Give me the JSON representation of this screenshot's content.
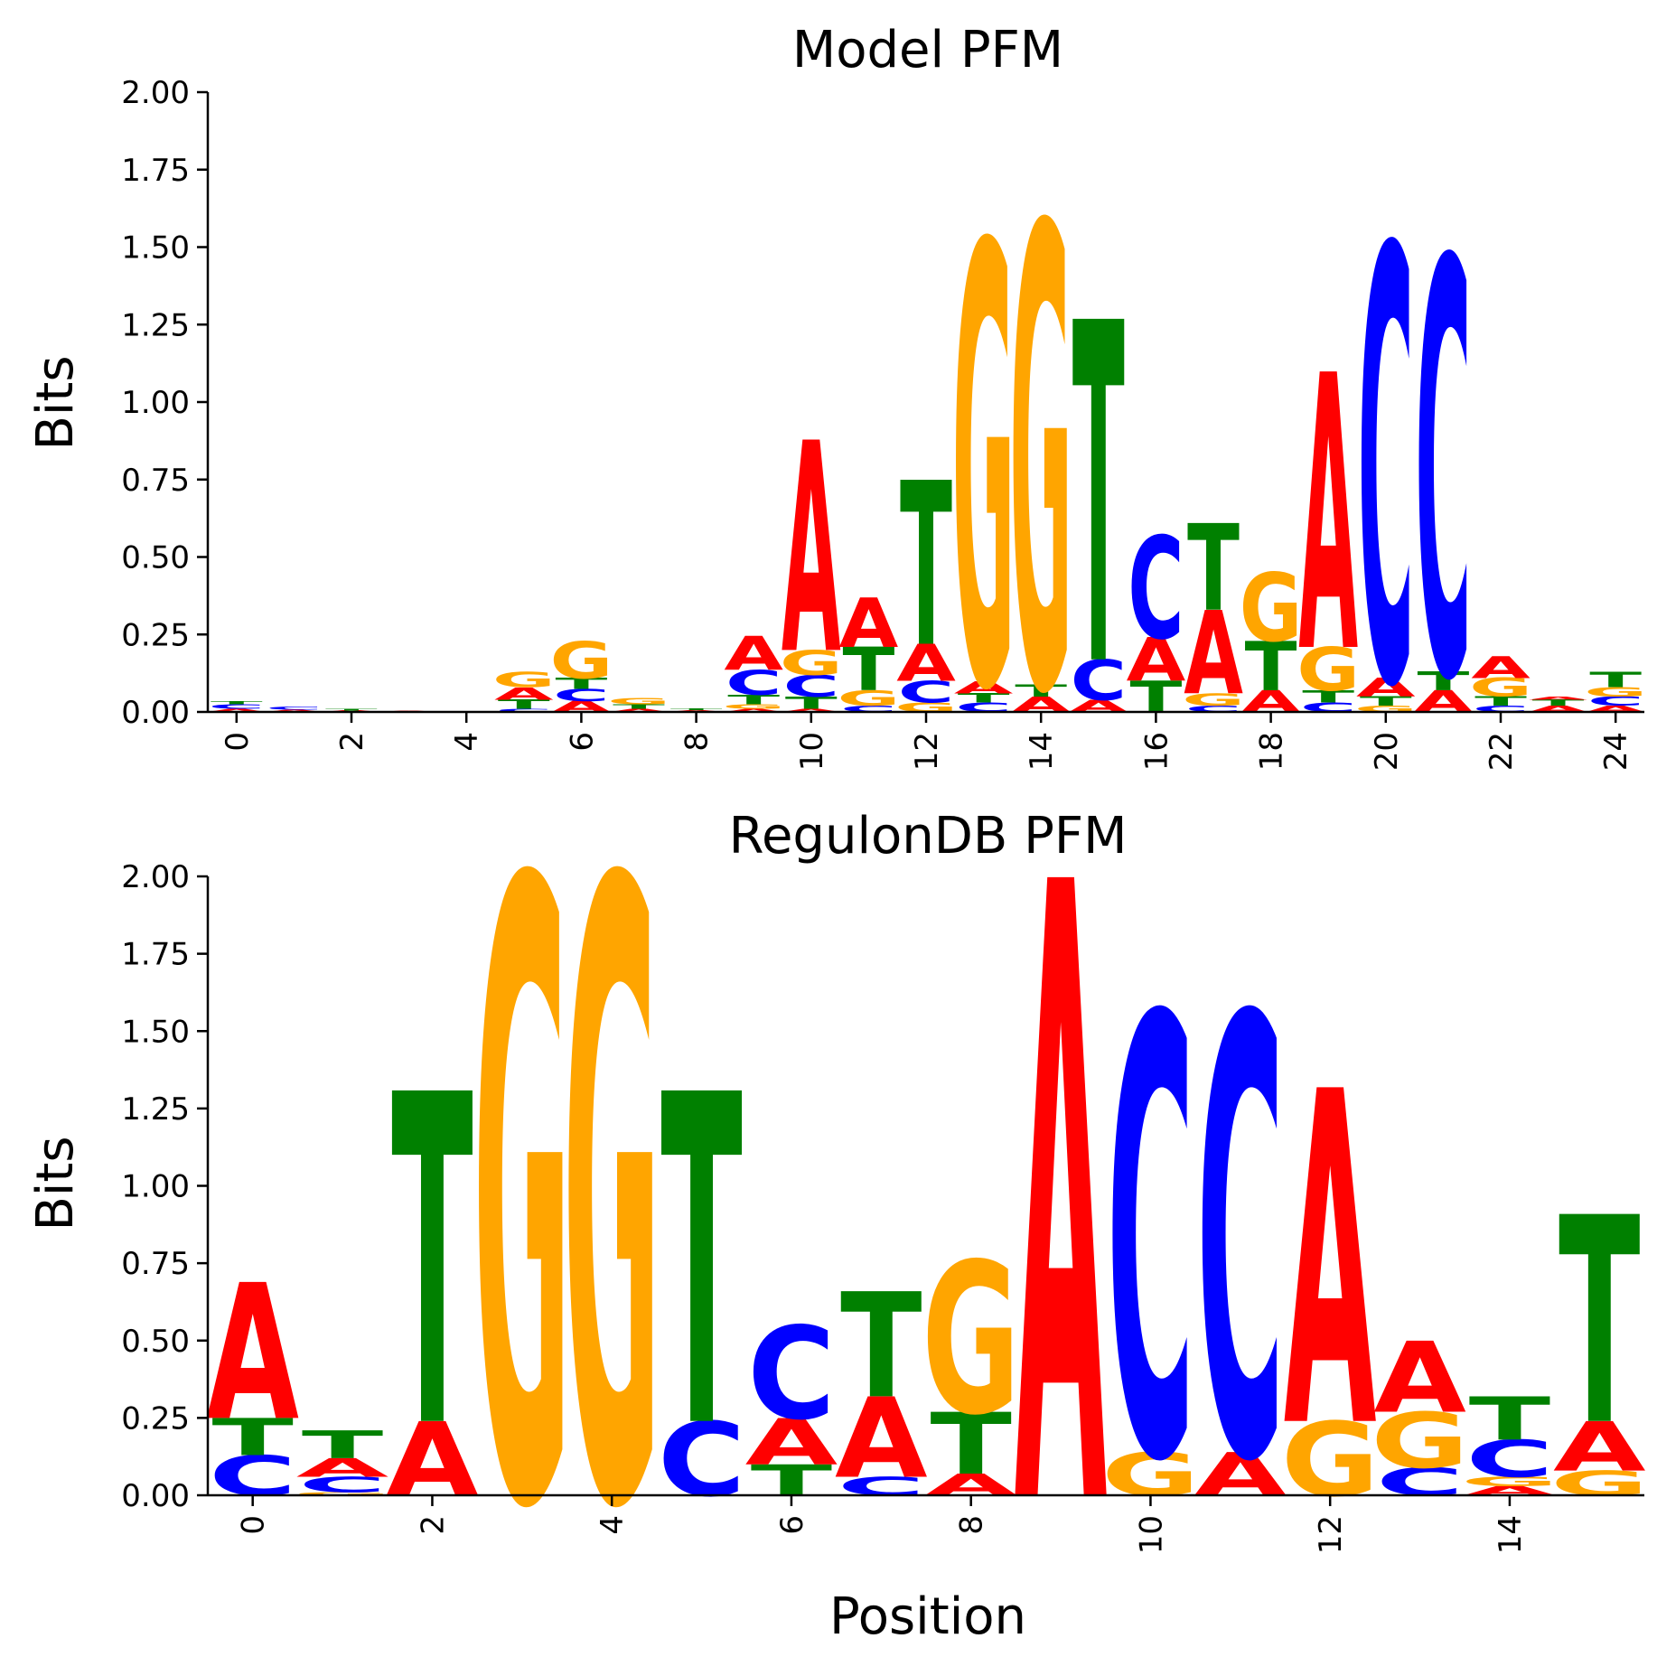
{
  "colors": {
    "A": "#ff0000",
    "C": "#0000ff",
    "G": "#ffa500",
    "T": "#008000"
  },
  "chart_data": [
    {
      "type": "sequence-logo",
      "title": "Model PFM",
      "ylabel": "Bits",
      "xlabel": "",
      "ylim": [
        0,
        2
      ],
      "yticks": [
        "0.00",
        "0.25",
        "0.50",
        "0.75",
        "1.00",
        "1.25",
        "1.50",
        "1.75",
        "2.00"
      ],
      "xticks": [
        "0",
        "2",
        "4",
        "6",
        "8",
        "10",
        "12",
        "14",
        "16",
        "18",
        "20",
        "22",
        "24"
      ],
      "positions": [
        [
          [
            "A",
            0.01
          ],
          [
            "C",
            0.015
          ],
          [
            "T",
            0.01
          ]
        ],
        [
          [
            "A",
            0.008
          ],
          [
            "C",
            0.01
          ]
        ],
        [
          [
            "A",
            0.005
          ],
          [
            "T",
            0.005
          ]
        ],
        [
          [
            "A",
            0.004
          ]
        ],
        [
          [
            "A",
            0.002
          ]
        ],
        [
          [
            "C",
            0.01
          ],
          [
            "T",
            0.03
          ],
          [
            "A",
            0.04
          ],
          [
            "G",
            0.05
          ]
        ],
        [
          [
            "A",
            0.035
          ],
          [
            "C",
            0.04
          ],
          [
            "T",
            0.035
          ],
          [
            "G",
            0.12
          ]
        ],
        [
          [
            "A",
            0.01
          ],
          [
            "T",
            0.015
          ],
          [
            "G",
            0.02
          ]
        ],
        [
          [
            "A",
            0.006
          ],
          [
            "T",
            0.006
          ]
        ],
        [
          [
            "A",
            0.01
          ],
          [
            "G",
            0.015
          ],
          [
            "T",
            0.03
          ],
          [
            "C",
            0.08
          ],
          [
            "A",
            0.11
          ]
        ],
        [
          [
            "A",
            0.01
          ],
          [
            "T",
            0.04
          ],
          [
            "C",
            0.07
          ],
          [
            "G",
            0.08
          ],
          [
            "A",
            0.68
          ]
        ],
        [
          [
            "C",
            0.02
          ],
          [
            "G",
            0.05
          ],
          [
            "T",
            0.14
          ],
          [
            "A",
            0.16
          ]
        ],
        [
          [
            "G",
            0.03
          ],
          [
            "C",
            0.07
          ],
          [
            "A",
            0.12
          ],
          [
            "T",
            0.53
          ]
        ],
        [
          [
            "C",
            0.03
          ],
          [
            "T",
            0.03
          ],
          [
            "A",
            0.04
          ],
          [
            "G",
            1.42
          ]
        ],
        [
          [
            "A",
            0.05
          ],
          [
            "T",
            0.04
          ],
          [
            "G",
            1.49
          ]
        ],
        [
          [
            "A",
            0.04
          ],
          [
            "C",
            0.13
          ],
          [
            "T",
            1.1
          ]
        ],
        [
          [
            "T",
            0.1
          ],
          [
            "A",
            0.14
          ],
          [
            "C",
            0.33
          ]
        ],
        [
          [
            "C",
            0.02
          ],
          [
            "G",
            0.04
          ],
          [
            "A",
            0.27
          ],
          [
            "T",
            0.28
          ]
        ],
        [
          [
            "A",
            0.07
          ],
          [
            "T",
            0.16
          ],
          [
            "G",
            0.22
          ]
        ],
        [
          [
            "C",
            0.03
          ],
          [
            "T",
            0.04
          ],
          [
            "G",
            0.14
          ],
          [
            "A",
            0.89
          ]
        ],
        [
          [
            "G",
            0.02
          ],
          [
            "T",
            0.03
          ],
          [
            "A",
            0.06
          ],
          [
            "C",
            1.4
          ]
        ],
        [
          [
            "A",
            0.07
          ],
          [
            "T",
            0.06
          ],
          [
            "C",
            1.34
          ]
        ],
        [
          [
            "C",
            0.02
          ],
          [
            "T",
            0.03
          ],
          [
            "G",
            0.06
          ],
          [
            "A",
            0.07
          ]
        ],
        [
          [
            "A",
            0.02
          ],
          [
            "T",
            0.02
          ],
          [
            "A",
            0.01
          ]
        ],
        [
          [
            "A",
            0.02
          ],
          [
            "C",
            0.03
          ],
          [
            "G",
            0.03
          ],
          [
            "T",
            0.05
          ]
        ]
      ]
    },
    {
      "type": "sequence-logo",
      "title": "RegulonDB PFM",
      "ylabel": "Bits",
      "xlabel": "Position",
      "ylim": [
        0,
        2
      ],
      "yticks": [
        "0.00",
        "0.25",
        "0.50",
        "0.75",
        "1.00",
        "1.25",
        "1.50",
        "1.75",
        "2.00"
      ],
      "xticks": [
        "0",
        "2",
        "4",
        "6",
        "8",
        "10",
        "12",
        "14"
      ],
      "positions": [
        [
          [
            "C",
            0.13
          ],
          [
            "T",
            0.12
          ],
          [
            "A",
            0.44
          ]
        ],
        [
          [
            "G",
            0.01
          ],
          [
            "C",
            0.05
          ],
          [
            "A",
            0.06
          ],
          [
            "T",
            0.09
          ]
        ],
        [
          [
            "A",
            0.24
          ],
          [
            "T",
            1.07
          ]
        ],
        [
          [
            "G",
            2.0
          ]
        ],
        [
          [
            "G",
            2.0
          ]
        ],
        [
          [
            "C",
            0.24
          ],
          [
            "T",
            1.07
          ]
        ],
        [
          [
            "T",
            0.1
          ],
          [
            "A",
            0.15
          ],
          [
            "C",
            0.3
          ]
        ],
        [
          [
            "C",
            0.06
          ],
          [
            "A",
            0.26
          ],
          [
            "T",
            0.34
          ]
        ],
        [
          [
            "A",
            0.07
          ],
          [
            "T",
            0.2
          ],
          [
            "G",
            0.49
          ]
        ],
        [
          [
            "A",
            2.0
          ]
        ],
        [
          [
            "G",
            0.14
          ],
          [
            "C",
            1.42
          ]
        ],
        [
          [
            "A",
            0.14
          ],
          [
            "C",
            1.42
          ]
        ],
        [
          [
            "G",
            0.24
          ],
          [
            "A",
            1.08
          ]
        ],
        [
          [
            "C",
            0.09
          ],
          [
            "G",
            0.18
          ],
          [
            "A",
            0.23
          ]
        ],
        [
          [
            "A",
            0.03
          ],
          [
            "G",
            0.03
          ],
          [
            "C",
            0.12
          ],
          [
            "T",
            0.14
          ]
        ],
        [
          [
            "G",
            0.08
          ],
          [
            "A",
            0.16
          ],
          [
            "T",
            0.67
          ]
        ]
      ]
    }
  ]
}
